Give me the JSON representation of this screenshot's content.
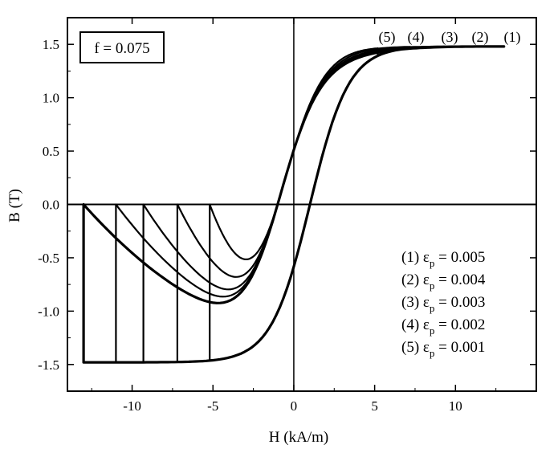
{
  "chart_data": {
    "type": "line",
    "title": "",
    "xlabel": "H (kA/m)",
    "ylabel": "B (T)",
    "xlim": [
      -14,
      15
    ],
    "ylim": [
      -1.75,
      1.75
    ],
    "x_ticks": [
      -10,
      -5,
      0,
      5,
      10
    ],
    "x_tick_labels": [
      "-10",
      "-5",
      "0",
      "5",
      "10"
    ],
    "y_ticks": [
      -1.5,
      -1.0,
      -0.5,
      0.0,
      0.5,
      1.0,
      1.5
    ],
    "y_tick_labels": [
      "-1.5",
      "-1.0",
      "-0.5",
      "0.0",
      "0.5",
      "1.0",
      "1.5"
    ],
    "grid": false,
    "annotation": "f = 0.075",
    "series_order_top": [
      "(5)",
      "(4)",
      "(3)",
      "(2)",
      "(1)"
    ],
    "legend": {
      "placement": "bottom-right",
      "entries": [
        {
          "label": "(1) ε",
          "sub": "p",
          "value": " = 0.005"
        },
        {
          "label": "(2) ε",
          "sub": "p",
          "value": " = 0.004"
        },
        {
          "label": "(3) ε",
          "sub": "p",
          "value": " = 0.003"
        },
        {
          "label": "(4) ε",
          "sub": "p",
          "value": " = 0.002"
        },
        {
          "label": "(5) ε",
          "sub": "p",
          "value": " = 0.001"
        }
      ]
    },
    "series": [
      {
        "name": "(1)",
        "Hmax": 13.0,
        "Bmax": 1.48,
        "Hc": 1.0,
        "Br": 0.36,
        "curve_label": "(1)"
      },
      {
        "name": "(2)",
        "Hmax": 11.0,
        "Bmax": 1.48,
        "Hc": 1.0,
        "Br": 0.36,
        "curve_label": "(2)"
      },
      {
        "name": "(3)",
        "Hmax": 9.3,
        "Bmax": 1.48,
        "Hc": 1.0,
        "Br": 0.36,
        "curve_label": "(3)"
      },
      {
        "name": "(4)",
        "Hmax": 7.2,
        "Bmax": 1.48,
        "Hc": 1.0,
        "Br": 0.36,
        "curve_label": "(4)"
      },
      {
        "name": "(5)",
        "Hmax": 5.2,
        "Bmax": 1.48,
        "Hc": 1.0,
        "Br": 0.36,
        "curve_label": "(5)"
      }
    ]
  }
}
